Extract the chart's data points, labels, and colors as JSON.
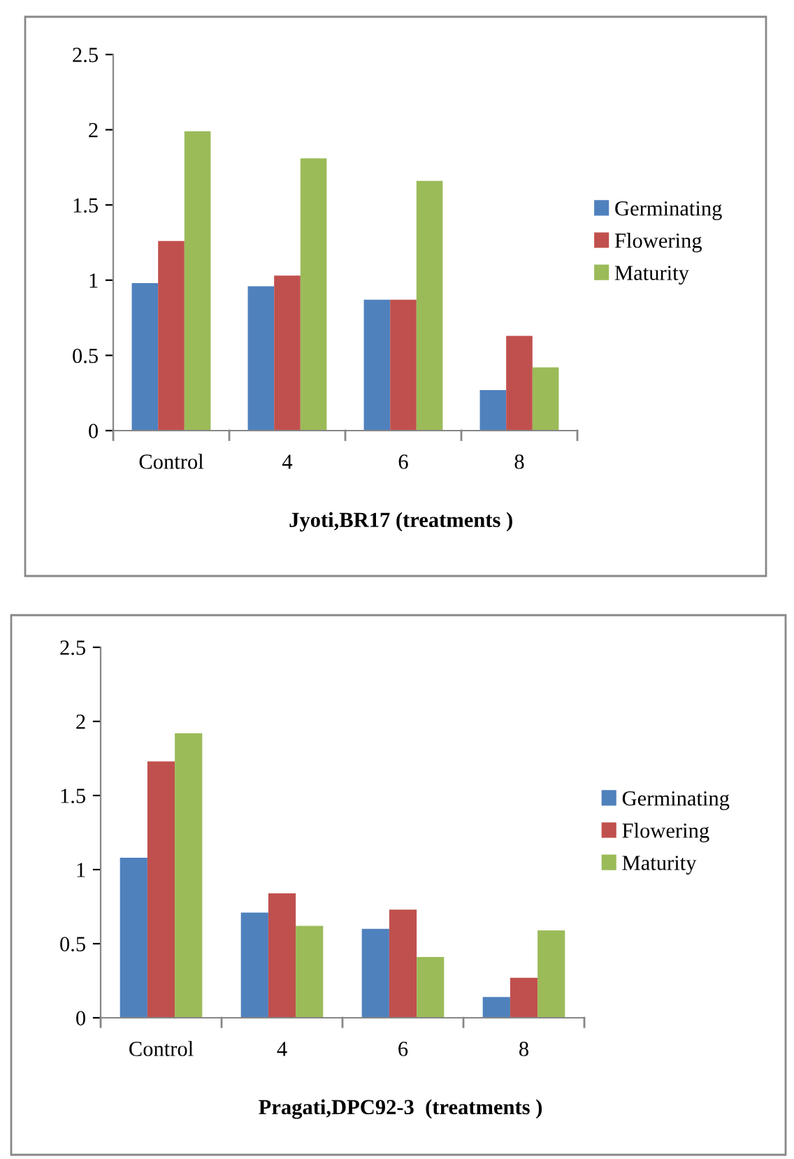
{
  "chart_data": [
    {
      "type": "bar",
      "xlabel": "Jyoti,BR17 (treatments )",
      "categories": [
        "Control",
        "4",
        "6",
        "8"
      ],
      "series": [
        {
          "name": "Germinating",
          "color": "#4f81bd",
          "values": [
            0.98,
            0.96,
            0.87,
            0.27
          ]
        },
        {
          "name": "Flowering",
          "color": "#c0504d",
          "values": [
            1.26,
            1.03,
            0.87,
            0.63
          ]
        },
        {
          "name": "Maturity",
          "color": "#9bbb59",
          "values": [
            1.99,
            1.81,
            1.66,
            0.42
          ]
        }
      ],
      "ylim": [
        0,
        2.5
      ],
      "yticks": [
        0,
        0.5,
        1,
        1.5,
        2,
        2.5
      ],
      "grid": false,
      "legend": "right"
    },
    {
      "type": "bar",
      "xlabel": "Pragati,DPC92-3  (treatments )",
      "categories": [
        "Control",
        "4",
        "6",
        "8"
      ],
      "series": [
        {
          "name": "Germinating",
          "color": "#4f81bd",
          "values": [
            1.08,
            0.71,
            0.6,
            0.14
          ]
        },
        {
          "name": "Flowering",
          "color": "#c0504d",
          "values": [
            1.73,
            0.84,
            0.73,
            0.27
          ]
        },
        {
          "name": "Maturity",
          "color": "#9bbb59",
          "values": [
            1.92,
            0.62,
            0.41,
            0.59
          ]
        }
      ],
      "ylim": [
        0,
        2.5
      ],
      "yticks": [
        0,
        0.5,
        1,
        1.5,
        2,
        2.5
      ],
      "grid": false,
      "legend": "right"
    }
  ]
}
